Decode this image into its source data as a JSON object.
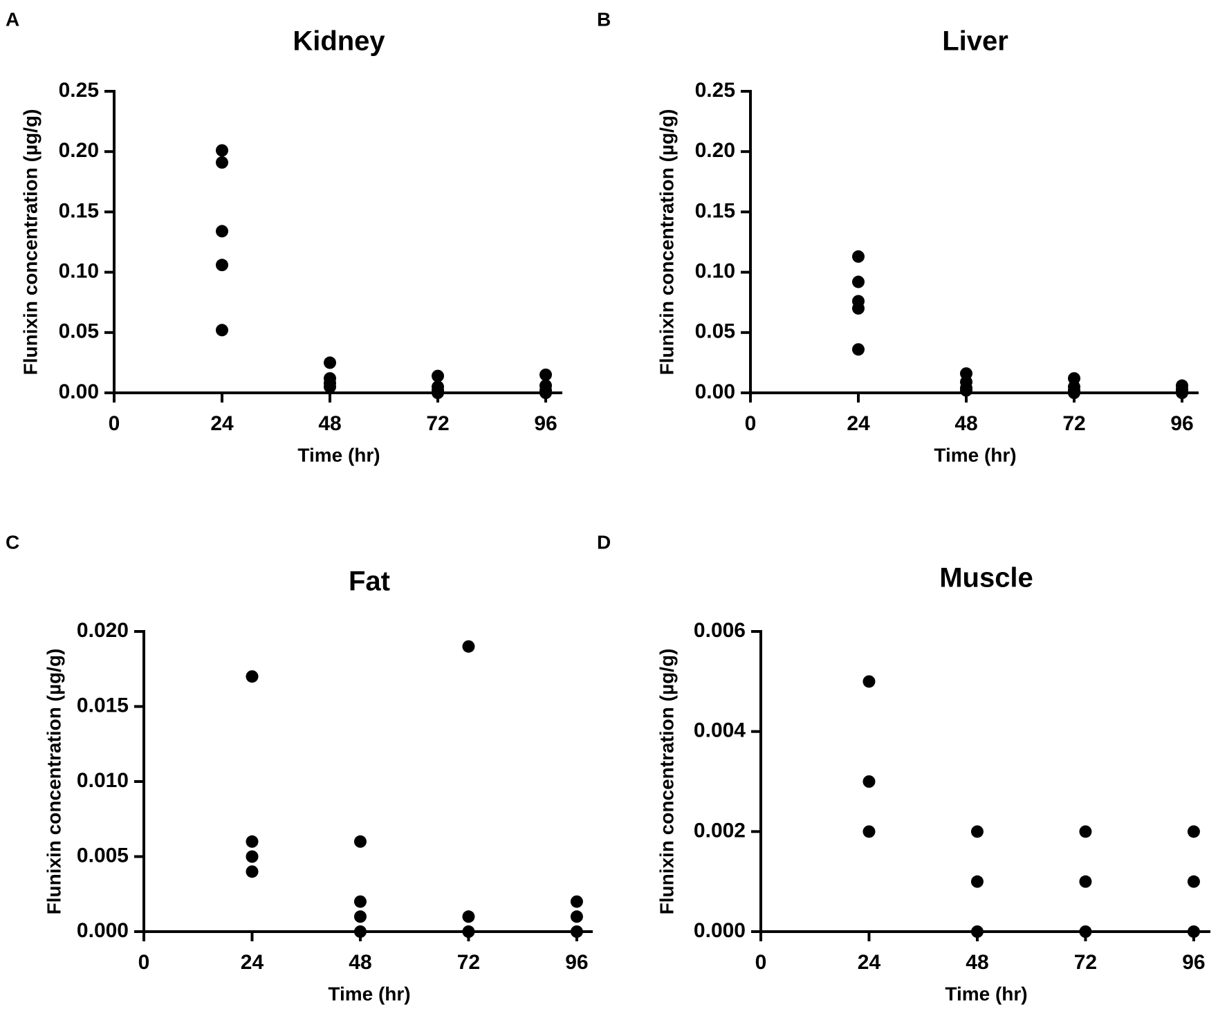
{
  "chart_data": [
    {
      "panel": "A",
      "type": "scatter",
      "title": "Kidney",
      "xlabel": "Time (hr)",
      "ylabel": "Flunixin concentration (µg/g)",
      "xlim": [
        0,
        100
      ],
      "ylim": [
        0,
        0.25
      ],
      "xticks": [
        0,
        24,
        48,
        72,
        96
      ],
      "xtick_labels": [
        "0",
        "24",
        "48",
        "72",
        "96"
      ],
      "yticks": [
        0,
        0.05,
        0.1,
        0.15,
        0.2,
        0.25
      ],
      "ytick_labels": [
        "0.00",
        "0.05",
        "0.10",
        "0.15",
        "0.20",
        "0.25"
      ],
      "points": [
        {
          "x": 24,
          "y": 0.201
        },
        {
          "x": 24,
          "y": 0.191
        },
        {
          "x": 24,
          "y": 0.134
        },
        {
          "x": 24,
          "y": 0.106
        },
        {
          "x": 24,
          "y": 0.052
        },
        {
          "x": 48,
          "y": 0.025
        },
        {
          "x": 48,
          "y": 0.012
        },
        {
          "x": 48,
          "y": 0.008
        },
        {
          "x": 48,
          "y": 0.005
        },
        {
          "x": 72,
          "y": 0.014
        },
        {
          "x": 72,
          "y": 0.005
        },
        {
          "x": 72,
          "y": 0.002
        },
        {
          "x": 72,
          "y": 0.0
        },
        {
          "x": 96,
          "y": 0.015
        },
        {
          "x": 96,
          "y": 0.006
        },
        {
          "x": 96,
          "y": 0.002
        },
        {
          "x": 96,
          "y": 0.0
        }
      ]
    },
    {
      "panel": "B",
      "type": "scatter",
      "title": "Liver",
      "xlabel": "Time (hr)",
      "ylabel": "Flunixin concentration (µg/g)",
      "xlim": [
        0,
        100
      ],
      "ylim": [
        0,
        0.25
      ],
      "xticks": [
        0,
        24,
        48,
        72,
        96
      ],
      "xtick_labels": [
        "0",
        "24",
        "48",
        "72",
        "96"
      ],
      "yticks": [
        0,
        0.05,
        0.1,
        0.15,
        0.2,
        0.25
      ],
      "ytick_labels": [
        "0.00",
        "0.05",
        "0.10",
        "0.15",
        "0.20",
        "0.25"
      ],
      "points": [
        {
          "x": 24,
          "y": 0.113
        },
        {
          "x": 24,
          "y": 0.092
        },
        {
          "x": 24,
          "y": 0.076
        },
        {
          "x": 24,
          "y": 0.07
        },
        {
          "x": 24,
          "y": 0.036
        },
        {
          "x": 48,
          "y": 0.016
        },
        {
          "x": 48,
          "y": 0.009
        },
        {
          "x": 48,
          "y": 0.004
        },
        {
          "x": 48,
          "y": 0.002
        },
        {
          "x": 72,
          "y": 0.012
        },
        {
          "x": 72,
          "y": 0.005
        },
        {
          "x": 72,
          "y": 0.002
        },
        {
          "x": 72,
          "y": 0.0
        },
        {
          "x": 96,
          "y": 0.006
        },
        {
          "x": 96,
          "y": 0.003
        },
        {
          "x": 96,
          "y": 0.001
        },
        {
          "x": 96,
          "y": 0.0
        }
      ]
    },
    {
      "panel": "C",
      "type": "scatter",
      "title": "Fat",
      "xlabel": "Time (hr)",
      "ylabel": "Flunixin concentration (µg/g)",
      "xlim": [
        0,
        100
      ],
      "ylim": [
        0,
        0.02
      ],
      "xticks": [
        0,
        24,
        48,
        72,
        96
      ],
      "xtick_labels": [
        "0",
        "24",
        "48",
        "72",
        "96"
      ],
      "yticks": [
        0,
        0.005,
        0.01,
        0.015,
        0.02
      ],
      "ytick_labels": [
        "0.000",
        "0.005",
        "0.010",
        "0.015",
        "0.020"
      ],
      "points": [
        {
          "x": 24,
          "y": 0.017
        },
        {
          "x": 24,
          "y": 0.006
        },
        {
          "x": 24,
          "y": 0.005
        },
        {
          "x": 24,
          "y": 0.004
        },
        {
          "x": 48,
          "y": 0.006
        },
        {
          "x": 48,
          "y": 0.002
        },
        {
          "x": 48,
          "y": 0.001
        },
        {
          "x": 48,
          "y": 0.0
        },
        {
          "x": 72,
          "y": 0.019
        },
        {
          "x": 72,
          "y": 0.001
        },
        {
          "x": 72,
          "y": 0.0
        },
        {
          "x": 96,
          "y": 0.002
        },
        {
          "x": 96,
          "y": 0.001
        },
        {
          "x": 96,
          "y": 0.0
        }
      ]
    },
    {
      "panel": "D",
      "type": "scatter",
      "title": "Muscle",
      "xlabel": "Time (hr)",
      "ylabel": "Flunixin concentration (µg/g)",
      "xlim": [
        0,
        100
      ],
      "ylim": [
        0,
        0.006
      ],
      "xticks": [
        0,
        24,
        48,
        72,
        96
      ],
      "xtick_labels": [
        "0",
        "24",
        "48",
        "72",
        "96"
      ],
      "yticks": [
        0,
        0.002,
        0.004,
        0.006
      ],
      "ytick_labels": [
        "0.000",
        "0.002",
        "0.004",
        "0.006"
      ],
      "points": [
        {
          "x": 24,
          "y": 0.005
        },
        {
          "x": 24,
          "y": 0.003
        },
        {
          "x": 24,
          "y": 0.002
        },
        {
          "x": 48,
          "y": 0.002
        },
        {
          "x": 48,
          "y": 0.001
        },
        {
          "x": 48,
          "y": 0.0
        },
        {
          "x": 72,
          "y": 0.002
        },
        {
          "x": 72,
          "y": 0.001
        },
        {
          "x": 72,
          "y": 0.0
        },
        {
          "x": 96,
          "y": 0.002
        },
        {
          "x": 96,
          "y": 0.001
        },
        {
          "x": 96,
          "y": 0.0
        }
      ]
    }
  ]
}
